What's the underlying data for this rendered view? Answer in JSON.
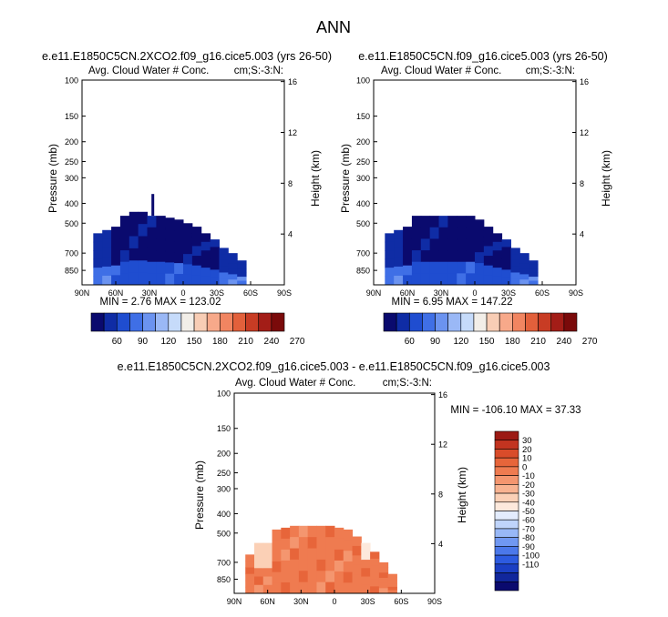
{
  "page_title": "ANN",
  "colors": {
    "base_scale": [
      "#0a0a6e",
      "#0f2ca5",
      "#1f4dd0",
      "#3f6fe6",
      "#6b93f0",
      "#9ab8f6",
      "#c6dbfa",
      "#f2eee8",
      "#f8cdb5",
      "#f7a98a",
      "#f18561",
      "#e2603b",
      "#c83c24",
      "#a31d17",
      "#7a0a0a"
    ],
    "diff_scale": [
      "#0a0a6e",
      "#11279c",
      "#1b3fc4",
      "#2d5be0",
      "#4b78ea",
      "#7098f2",
      "#98b8f7",
      "#bfd4fb",
      "#e3ecfd",
      "#fde9dc",
      "#fbd0b6",
      "#f8b391",
      "#f4966f",
      "#ef7b50",
      "#e7653a",
      "#d94c2a",
      "#c23420",
      "#9c1a14"
    ]
  },
  "chart_data": [
    {
      "type": "heatmap",
      "title": "e.e11.E1850C5CN.2XCO2.f09_g16.cice5.003 (yrs 26-50)",
      "left_string": "Avg. Cloud Water # Conc.",
      "right_string": "cm;S:-3:N:",
      "ylabel": "Pressure (mb)",
      "ylabel_right": "Height (km)",
      "xticks": [
        "90N",
        "60N",
        "30N",
        "0",
        "30S",
        "60S",
        "90S"
      ],
      "yticks": [
        "100",
        "150",
        "200",
        "250",
        "300",
        "400",
        "500",
        "700",
        "850"
      ],
      "yticks_right": [
        "16",
        "12",
        "8",
        "4"
      ],
      "min_max_text": "MIN =  2.76  MAX = 123.02",
      "stats": {
        "min": 2.76,
        "max": 123.02
      },
      "colorbar": {
        "labels": [
          "60",
          "90",
          "120",
          "150",
          "180",
          "210",
          "240",
          "270"
        ]
      },
      "field": {
        "top_profile_pressure": [
          1000,
          620,
          560,
          540,
          520,
          460,
          440,
          460,
          460,
          470,
          480,
          500,
          520,
          560,
          600,
          660,
          700,
          760,
          850
        ],
        "top_profile_lat": [
          88,
          80,
          72,
          64,
          56,
          48,
          40,
          32,
          24,
          16,
          8,
          0,
          -8,
          -16,
          -24,
          -32,
          -40,
          -48,
          -56
        ],
        "spike": {
          "lat": 27,
          "pressure_top": 360
        }
      }
    },
    {
      "type": "heatmap",
      "title": "e.e11.E1850C5CN.f09_g16.cice5.003 (yrs 26-50)",
      "left_string": "Avg. Cloud Water # Conc.",
      "right_string": "cm;S:-3:N:",
      "ylabel": "Pressure (mb)",
      "ylabel_right": "Height (km)",
      "xticks": [
        "90N",
        "60N",
        "30N",
        "0",
        "30S",
        "60S",
        "90S"
      ],
      "yticks": [
        "100",
        "150",
        "200",
        "250",
        "300",
        "400",
        "500",
        "700",
        "850"
      ],
      "yticks_right": [
        "16",
        "12",
        "8",
        "4"
      ],
      "min_max_text": "MIN =  6.95  MAX = 147.22",
      "stats": {
        "min": 6.95,
        "max": 147.22
      },
      "colorbar": {
        "labels": [
          "60",
          "90",
          "120",
          "150",
          "180",
          "210",
          "240",
          "270"
        ]
      },
      "field": {
        "top_profile_pressure": [
          1000,
          620,
          560,
          540,
          520,
          460,
          460,
          460,
          460,
          460,
          460,
          480,
          520,
          560,
          600,
          660,
          700,
          760,
          850
        ],
        "top_profile_lat": [
          88,
          80,
          72,
          64,
          56,
          48,
          40,
          32,
          24,
          16,
          8,
          0,
          -8,
          -16,
          -24,
          -32,
          -40,
          -48,
          -56
        ],
        "spike": null
      }
    },
    {
      "type": "heatmap",
      "title": "e.e11.E1850C5CN.2XCO2.f09_g16.cice5.003 - e.e11.E1850C5CN.f09_g16.cice5.003",
      "left_string": "Avg. Cloud Water # Conc.",
      "right_string": "cm;S:-3:N:",
      "ylabel": "Pressure (mb)",
      "ylabel_right": "Height (km)",
      "xticks": [
        "90N",
        "60N",
        "30N",
        "0",
        "30S",
        "60S",
        "90S"
      ],
      "yticks": [
        "100",
        "150",
        "200",
        "250",
        "300",
        "400",
        "500",
        "700",
        "850"
      ],
      "yticks_right": [
        "16",
        "12",
        "8",
        "4"
      ],
      "min_max_text": "MIN = -106.10  MAX =  37.33",
      "stats": {
        "min": -106.1,
        "max": 37.33
      },
      "colorbar": {
        "labels": [
          "30",
          "20",
          "10",
          "0",
          "-10",
          "-20",
          "-30",
          "-40",
          "-50",
          "-60",
          "-70",
          "-80",
          "-90",
          "-100",
          "-110"
        ]
      },
      "field": {
        "top_profile_pressure": [
          1000,
          700,
          640,
          560,
          560,
          480,
          470,
          460,
          460,
          460,
          460,
          470,
          480,
          520,
          560,
          620,
          700,
          800,
          900
        ],
        "top_profile_lat": [
          88,
          80,
          72,
          64,
          56,
          48,
          40,
          32,
          24,
          16,
          8,
          0,
          -8,
          -16,
          -24,
          -32,
          -40,
          -48,
          -56
        ],
        "spike": null
      }
    }
  ]
}
